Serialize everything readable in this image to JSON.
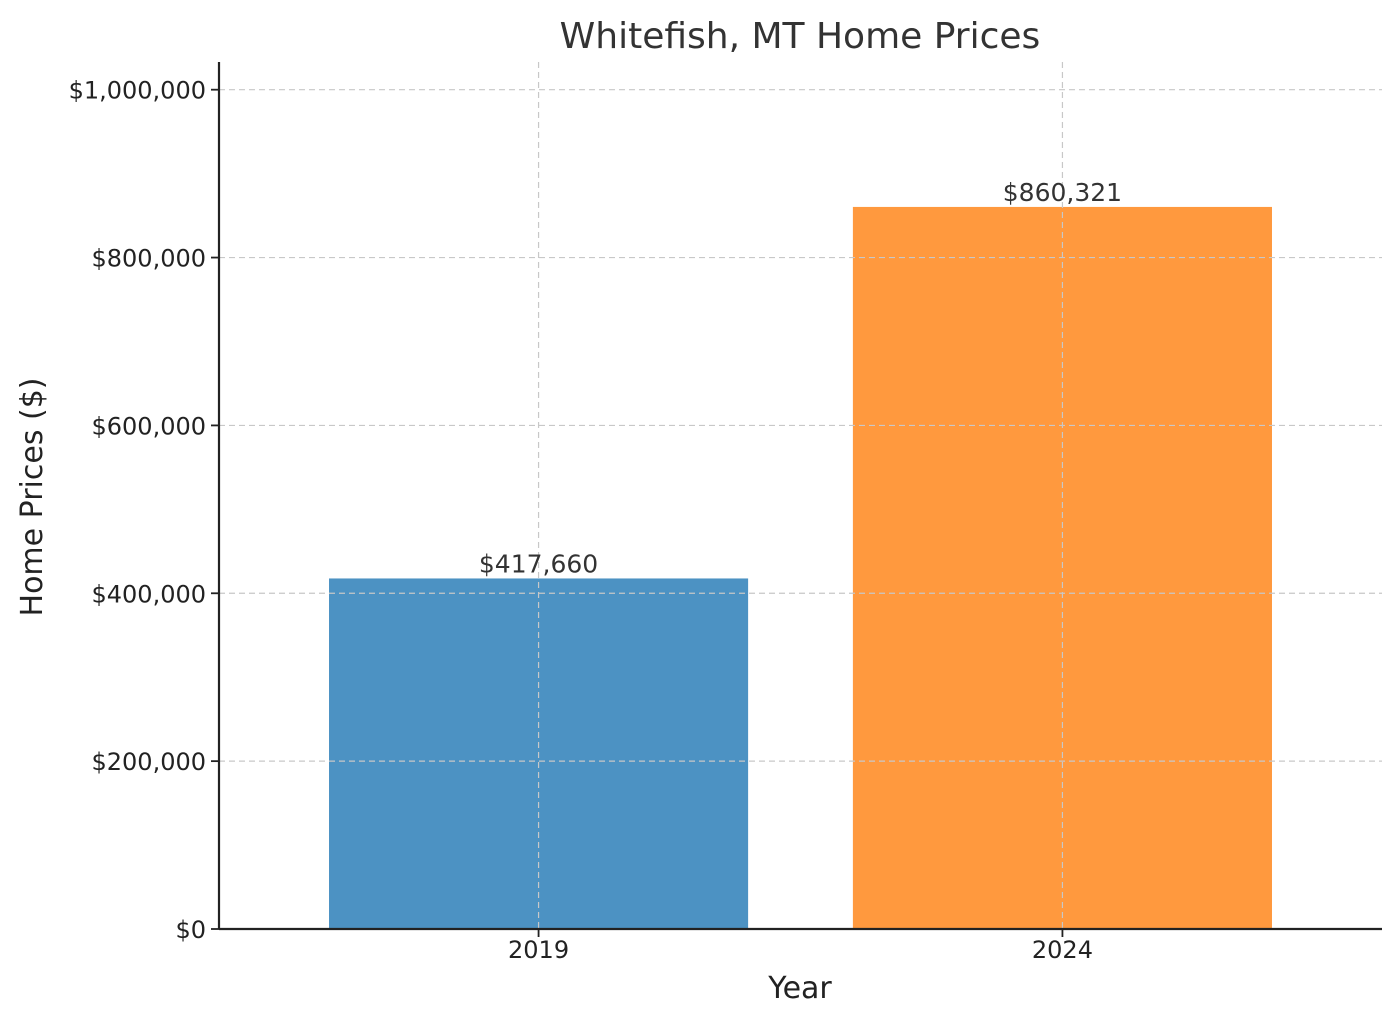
{
  "chart_data": {
    "type": "bar",
    "title": "Whitefish, MT Home Prices",
    "xlabel": "Year",
    "ylabel": "Home Prices ($)",
    "categories": [
      "2019",
      "2024"
    ],
    "values": [
      417660,
      860321
    ],
    "data_labels": [
      "$417,660",
      "$860,321"
    ],
    "colors": [
      "#4c92c3",
      "#ff993e"
    ],
    "ylim": [
      0,
      1033000
    ],
    "yticks": [
      0,
      200000,
      400000,
      600000,
      800000,
      1000000
    ],
    "ytick_labels": [
      "$0",
      "$200,000",
      "$400,000",
      "$600,000",
      "$800,000",
      "$1,000,000"
    ],
    "grid": true
  }
}
